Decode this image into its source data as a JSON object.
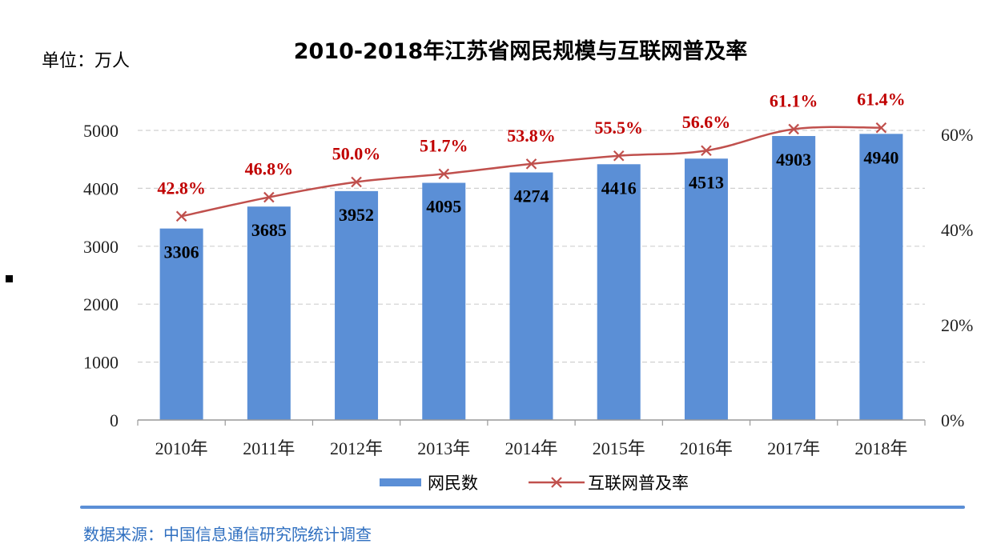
{
  "unit_label": "单位：万人",
  "source_label": "数据来源：中国信息通信研究院统计调查",
  "colors": {
    "bar": "#5b8fd6",
    "line": "#c0504d",
    "pct_label": "#c00000",
    "source": "#2f6fc0"
  },
  "chart_data": {
    "type": "bar",
    "title": "2010-2018年江苏省网民规模与互联网普及率",
    "categories": [
      "2010年",
      "2011年",
      "2012年",
      "2013年",
      "2014年",
      "2015年",
      "2016年",
      "2017年",
      "2018年"
    ],
    "series": [
      {
        "name": "网民数",
        "type": "bar",
        "axis": "left",
        "values": [
          3306,
          3685,
          3952,
          4095,
          4274,
          4416,
          4513,
          4903,
          4940
        ]
      },
      {
        "name": "互联网普及率",
        "type": "line",
        "axis": "right",
        "values": [
          42.8,
          46.8,
          50.0,
          51.7,
          53.8,
          55.5,
          56.6,
          61.1,
          61.4
        ],
        "labels": [
          "42.8%",
          "46.8%",
          "50.0%",
          "51.7%",
          "53.8%",
          "55.5%",
          "56.6%",
          "61.1%",
          "61.4%"
        ]
      }
    ],
    "y_left": {
      "ylim": [
        0,
        5000
      ],
      "ticks": [
        "0",
        "1000",
        "2000",
        "3000",
        "4000",
        "5000"
      ]
    },
    "y_right": {
      "ylim": [
        0,
        60
      ],
      "ticks": [
        "0%",
        "20%",
        "40%",
        "60%"
      ]
    },
    "grid": true,
    "legend": "bottom"
  }
}
